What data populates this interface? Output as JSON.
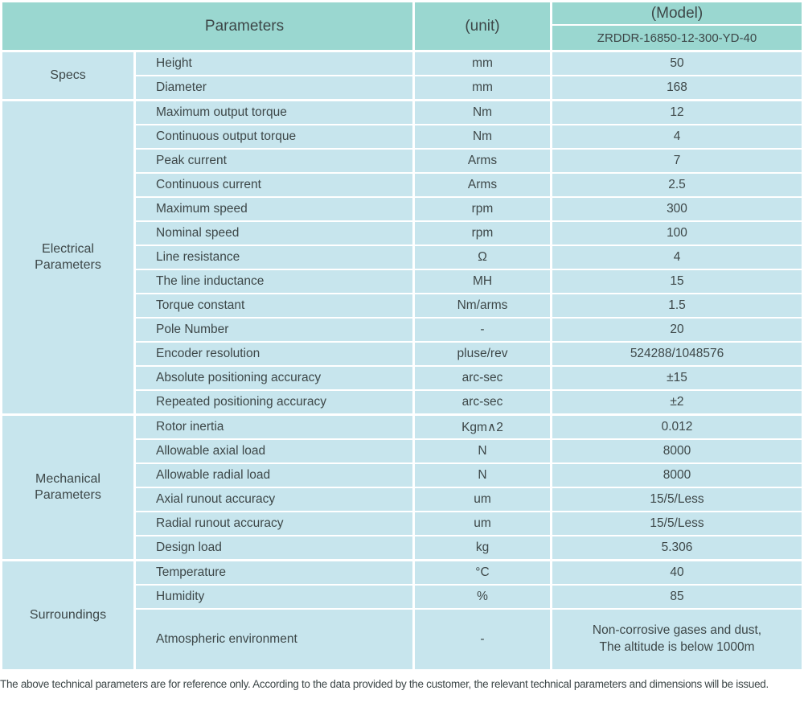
{
  "colors": {
    "header_bg": "#9ad7d0",
    "cell_bg": "#c7e5ed",
    "text": "#3d4748",
    "divider": "#ffffff"
  },
  "header": {
    "parameters_label": "Parameters",
    "unit_label": "(unit)",
    "model_label": "(Model)",
    "model_value": "ZRDDR-16850-12-300-YD-40"
  },
  "sections": [
    {
      "group": "Specs",
      "rows": [
        {
          "param": "Height",
          "unit": "mm",
          "value": "50"
        },
        {
          "param": "Diameter",
          "unit": "mm",
          "value": "168"
        }
      ]
    },
    {
      "group": "Electrical Parameters",
      "rows": [
        {
          "param": "Maximum output torque",
          "unit": "Nm",
          "value": "12"
        },
        {
          "param": "Continuous output torque",
          "unit": "Nm",
          "value": "4"
        },
        {
          "param": "Peak current",
          "unit": "Arms",
          "value": "7"
        },
        {
          "param": "Continuous current",
          "unit": "Arms",
          "value": "2.5"
        },
        {
          "param": "Maximum speed",
          "unit": "rpm",
          "value": "300"
        },
        {
          "param": "Nominal speed",
          "unit": "rpm",
          "value": "100"
        },
        {
          "param": "Line resistance",
          "unit": "Ω",
          "value": "4"
        },
        {
          "param": "The line inductance",
          "unit": "MH",
          "value": "15"
        },
        {
          "param": "Torque constant",
          "unit": "Nm/arms",
          "value": "1.5"
        },
        {
          "param": "Pole Number",
          "unit": "-",
          "value": "20"
        },
        {
          "param": "Encoder resolution",
          "unit": "pluse/rev",
          "value": "524288/1048576"
        },
        {
          "param": "Absolute positioning accuracy",
          "unit": "arc-sec",
          "value": "±15"
        },
        {
          "param": "Repeated positioning accuracy",
          "unit": "arc-sec",
          "value": "±2"
        }
      ]
    },
    {
      "group": "Mechanical Parameters",
      "rows": [
        {
          "param": "Rotor inertia",
          "unit": "Kgm∧2",
          "value": "0.012"
        },
        {
          "param": "Allowable axial load",
          "unit": "N",
          "value": "8000"
        },
        {
          "param": "Allowable radial load",
          "unit": "N",
          "value": "8000"
        },
        {
          "param": "Axial runout accuracy",
          "unit": "um",
          "value": "15/5/Less"
        },
        {
          "param": "Radial runout accuracy",
          "unit": "um",
          "value": "15/5/Less"
        },
        {
          "param": "Design load",
          "unit": "kg",
          "value": "5.306"
        }
      ]
    },
    {
      "group": "Surroundings",
      "rows": [
        {
          "param": "Temperature",
          "unit": "°C",
          "value": "40"
        },
        {
          "param": "Humidity",
          "unit": "%",
          "value": "85"
        },
        {
          "param": "Atmospheric environment",
          "unit": "-",
          "value": "Non-corrosive gases and dust,\nThe altitude is below 1000m",
          "tall": true
        }
      ]
    }
  ],
  "footer": {
    "note": "The above technical parameters are for reference only. According to the data provided by the customer, the relevant technical parameters and dimensions will be issued."
  }
}
